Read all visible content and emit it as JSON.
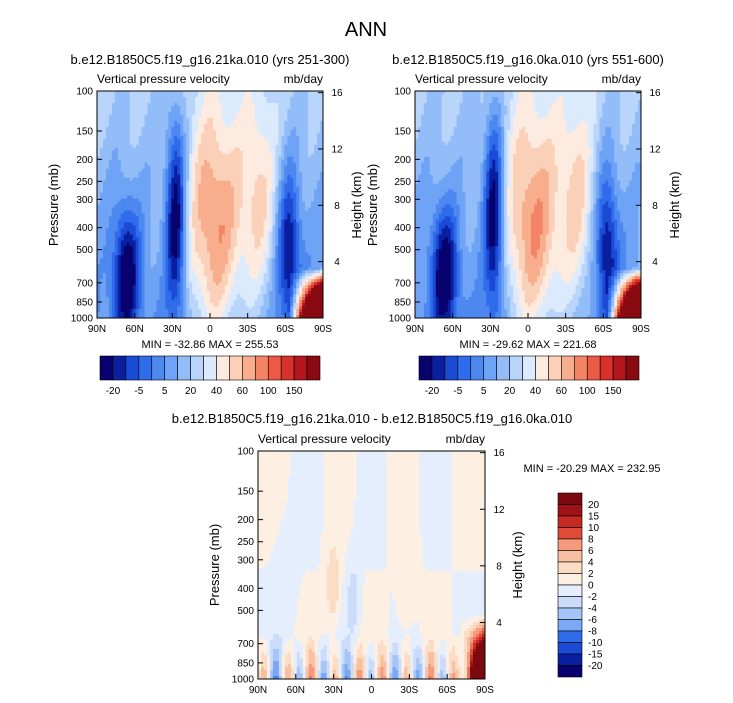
{
  "figure_title": "ANN",
  "colors": {
    "model_scale": [
      "#08026e",
      "#0a1fa0",
      "#1b4bd6",
      "#2f6ceb",
      "#4d88f0",
      "#6fa3f5",
      "#93bdf8",
      "#b9d5fb",
      "#dceafd",
      "#fdebe0",
      "#fbd0b8",
      "#f8ad8c",
      "#f48466",
      "#ec5a45",
      "#d6312b",
      "#b3161d",
      "#8a0a12"
    ],
    "diff_scale": [
      "#08026e",
      "#0a1fa0",
      "#1b4bd6",
      "#2f6ceb",
      "#4d88f0",
      "#7aa8f3",
      "#a5c4f7",
      "#cbdcfa",
      "#e4eefc",
      "#fdf0e3",
      "#fbdcc4",
      "#f8bfa1",
      "#f49b7d",
      "#ee735a",
      "#e04b39",
      "#c62a23",
      "#9e1218",
      "#7a0a10"
    ]
  },
  "chart_data": [
    {
      "type": "heatmap",
      "title": "b.e12.B1850C5.f19_g16.21ka.010 (yrs 251-300)",
      "subtitle_left": "Vertical pressure velocity",
      "subtitle_right": "mb/day",
      "xlabel": "",
      "ylabel": "Pressure (mb)",
      "ylabel_right": "Height (km)",
      "x_ticks": [
        "90N",
        "60N",
        "30N",
        "0",
        "30S",
        "60S",
        "90S"
      ],
      "y_ticks": [
        "100",
        "150",
        "200",
        "250",
        "300",
        "400",
        "500",
        "700",
        "850",
        "1000"
      ],
      "y_ticks_values": [
        100,
        150,
        200,
        250,
        300,
        400,
        500,
        700,
        850,
        1000
      ],
      "y_right_ticks": [
        "16",
        "12",
        "8",
        "4"
      ],
      "y_right_ticks_values": [
        16,
        12,
        8,
        4
      ],
      "stats": "MIN = -32.86  MAX = 255.53",
      "colorbar_labels": [
        "-20",
        "-5",
        "5",
        "20",
        "40",
        "60",
        "100",
        "150"
      ],
      "zlim": [
        -32.86,
        255.53
      ],
      "ylog": true
    },
    {
      "type": "heatmap",
      "title": "b.e12.B1850C5.f19_g16.0ka.010 (yrs 551-600)",
      "subtitle_left": "Vertical pressure velocity",
      "subtitle_right": "mb/day",
      "xlabel": "",
      "ylabel": "Pressure (mb)",
      "ylabel_right": "Height (km)",
      "x_ticks": [
        "90N",
        "60N",
        "30N",
        "0",
        "30S",
        "60S",
        "90S"
      ],
      "y_ticks": [
        "100",
        "150",
        "200",
        "250",
        "300",
        "400",
        "500",
        "700",
        "850",
        "1000"
      ],
      "y_ticks_values": [
        100,
        150,
        200,
        250,
        300,
        400,
        500,
        700,
        850,
        1000
      ],
      "y_right_ticks": [
        "16",
        "12",
        "8",
        "4"
      ],
      "y_right_ticks_values": [
        16,
        12,
        8,
        4
      ],
      "stats": "MIN = -29.62  MAX = 221.68",
      "colorbar_labels": [
        "-20",
        "-5",
        "5",
        "20",
        "40",
        "60",
        "100",
        "150"
      ],
      "zlim": [
        -29.62,
        221.68
      ],
      "ylog": true
    },
    {
      "type": "heatmap",
      "title": "b.e12.B1850C5.f19_g16.21ka.010 - b.e12.B1850C5.f19_g16.0ka.010",
      "subtitle_left": "Vertical pressure velocity",
      "subtitle_right": "mb/day",
      "xlabel": "",
      "ylabel": "Pressure (mb)",
      "ylabel_right": "Height (km)",
      "x_ticks": [
        "90N",
        "60N",
        "30N",
        "0",
        "30S",
        "60S",
        "90S"
      ],
      "y_ticks": [
        "100",
        "150",
        "200",
        "250",
        "300",
        "400",
        "500",
        "700",
        "850",
        "1000"
      ],
      "y_ticks_values": [
        100,
        150,
        200,
        250,
        300,
        400,
        500,
        700,
        850,
        1000
      ],
      "y_right_ticks": [
        "16",
        "12",
        "8",
        "4"
      ],
      "y_right_ticks_values": [
        16,
        12,
        8,
        4
      ],
      "stats": "MIN = -20.29  MAX = 232.95",
      "colorbar_labels": [
        "20",
        "15",
        "10",
        "8",
        "6",
        "4",
        "2",
        "0",
        "-2",
        "-4",
        "-6",
        "-8",
        "-10",
        "-15",
        "-20"
      ],
      "zlim": [
        -20.29,
        232.95
      ],
      "ylog": true
    }
  ]
}
